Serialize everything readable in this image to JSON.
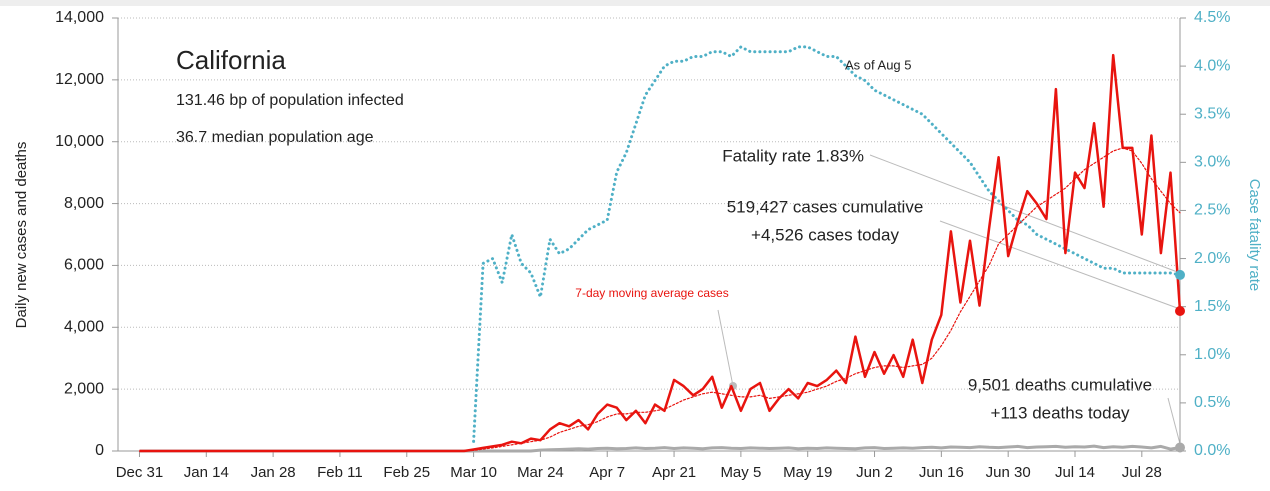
{
  "chart_data": {
    "type": "line",
    "annotations": {
      "title": "California",
      "line1": "131.46 bp of population infected",
      "line2": "36.7 median population age",
      "asof": "As of Aug 5",
      "fatality": "Fatality rate 1.83%",
      "cases_cum": "519,427 cases cumulative",
      "cases_today": "+4,526 cases today",
      "deaths_cum": "9,501 deaths cumulative",
      "deaths_today": "+113 deaths today"
    },
    "ylabel": "Daily new cases and deaths",
    "y2label": "Case fatality rate",
    "x": [
      0,
      66,
      68,
      70,
      72,
      74,
      76,
      78,
      80,
      82,
      84,
      86,
      88,
      90,
      92,
      94,
      96,
      98,
      100,
      102,
      104,
      106,
      108,
      110,
      112,
      114,
      116,
      118,
      120,
      122,
      124,
      126,
      128,
      130,
      132,
      134,
      136,
      138,
      140,
      142,
      144,
      146,
      148,
      150,
      152,
      154,
      156,
      158,
      160,
      162,
      164,
      166,
      168,
      170,
      172,
      174,
      176,
      178,
      180,
      182,
      184,
      186,
      188,
      190,
      192,
      194,
      196,
      198,
      200,
      202,
      204,
      206,
      208,
      210,
      212,
      214,
      216,
      218
    ],
    "xlim": [
      -4.5,
      218
    ],
    "xticks": [
      {
        "value": 0,
        "label": "Dec 31"
      },
      {
        "value": 14,
        "label": "Jan 14"
      },
      {
        "value": 28,
        "label": "Jan 28"
      },
      {
        "value": 42,
        "label": "Feb 11"
      },
      {
        "value": 56,
        "label": "Feb 25"
      },
      {
        "value": 70,
        "label": "Mar 10"
      },
      {
        "value": 84,
        "label": "Mar 24"
      },
      {
        "value": 98,
        "label": "Apr 7"
      },
      {
        "value": 112,
        "label": "Apr 21"
      },
      {
        "value": 126,
        "label": "May 5"
      },
      {
        "value": 140,
        "label": "May 19"
      },
      {
        "value": 154,
        "label": "Jun 2"
      },
      {
        "value": 168,
        "label": "Jun 16"
      },
      {
        "value": 182,
        "label": "Jun 30"
      },
      {
        "value": 196,
        "label": "Jul 14"
      },
      {
        "value": 210,
        "label": "Jul 28"
      }
    ],
    "ylim": [
      0,
      14000
    ],
    "yticks": [
      0,
      {
        "value": 2000,
        "label": "2,000"
      },
      {
        "value": 4000,
        "label": "4,000"
      },
      {
        "value": 6000,
        "label": "6,000"
      },
      {
        "value": 8000,
        "label": "8,000"
      },
      {
        "value": 10000,
        "label": "10,000"
      },
      {
        "value": 12000,
        "label": "12,000"
      },
      {
        "value": 14000,
        "label": "14,000"
      }
    ],
    "y2lim": [
      0,
      4.5
    ],
    "y2ticks": [
      {
        "value": 0,
        "label": "0.0%"
      },
      {
        "value": 0.5,
        "label": "0.5%"
      },
      {
        "value": 1,
        "label": "1.0%"
      },
      {
        "value": 1.5,
        "label": "1.5%"
      },
      {
        "value": 2,
        "label": "2.0%"
      },
      {
        "value": 2.5,
        "label": "2.5%"
      },
      {
        "value": 3,
        "label": "3.0%"
      },
      {
        "value": 3.5,
        "label": "3.5%"
      },
      {
        "value": 4,
        "label": "4.0%"
      },
      {
        "value": 4.5,
        "label": "4.5%"
      }
    ],
    "grid": true,
    "series": [
      {
        "color": "#e8140f",
        "style": "solid",
        "values": [
          0,
          0,
          0,
          50,
          100,
          150,
          200,
          300,
          250,
          400,
          350,
          700,
          900,
          800,
          1000,
          700,
          1200,
          1500,
          1400,
          1000,
          1300,
          900,
          1500,
          1300,
          2300,
          2100,
          1800,
          2000,
          2400,
          1400,
          2100,
          1300,
          2000,
          2200,
          1300,
          1700,
          2000,
          1700,
          2200,
          2100,
          2300,
          2600,
          2200,
          3700,
          2400,
          3200,
          2500,
          3100,
          2400,
          3600,
          2200,
          3600,
          4400,
          7100,
          4800,
          6800,
          4700,
          7200,
          9500,
          6300,
          7400,
          8400,
          8000,
          7500,
          11700,
          6400,
          9000,
          8500,
          10600,
          7900,
          12800,
          9800,
          9800,
          7000,
          10200,
          6400,
          9000,
          4526
        ]
      },
      {
        "name": "7-day moving average cases",
        "color": "#e8140f",
        "style": "dotted",
        "values": [
          0,
          0,
          0,
          20,
          60,
          100,
          150,
          200,
          250,
          300,
          350,
          450,
          600,
          700,
          800,
          850,
          950,
          1100,
          1200,
          1200,
          1250,
          1250,
          1300,
          1350,
          1500,
          1650,
          1750,
          1850,
          1900,
          1850,
          1800,
          1750,
          1750,
          1800,
          1700,
          1750,
          1800,
          1850,
          1900,
          2000,
          2100,
          2250,
          2350,
          2500,
          2600,
          2700,
          2750,
          2750,
          2700,
          2750,
          2800,
          3000,
          3400,
          3900,
          4500,
          5000,
          5500,
          6000,
          6700,
          7000,
          7300,
          7600,
          7900,
          8100,
          8300,
          8500,
          8800,
          9100,
          9300,
          9500,
          9700,
          9800,
          9700,
          9300,
          8800,
          8400,
          8000,
          7700
        ]
      },
      {
        "color": "#4fb0c6",
        "style": "dotted",
        "axis": "y2",
        "values": [
          null,
          null,
          null,
          0.1,
          1.95,
          2.0,
          1.75,
          2.25,
          1.95,
          1.85,
          1.6,
          2.2,
          2.05,
          2.1,
          2.2,
          2.3,
          2.35,
          2.4,
          2.9,
          3.1,
          3.4,
          3.7,
          3.85,
          4.0,
          4.05,
          4.05,
          4.1,
          4.1,
          4.15,
          4.15,
          4.1,
          4.2,
          4.15,
          4.15,
          4.15,
          4.15,
          4.15,
          4.2,
          4.2,
          4.15,
          4.1,
          4.1,
          4.0,
          3.9,
          3.85,
          3.75,
          3.7,
          3.65,
          3.6,
          3.55,
          3.5,
          3.4,
          3.3,
          3.2,
          3.1,
          3.0,
          2.85,
          2.7,
          2.6,
          2.5,
          2.4,
          2.35,
          2.25,
          2.2,
          2.15,
          2.1,
          2.05,
          2.0,
          1.95,
          1.9,
          1.9,
          1.85,
          1.85,
          1.85,
          1.85,
          1.85,
          1.85,
          1.83
        ]
      },
      {
        "color": "#aaaaaa",
        "style": "solid",
        "values": [
          0,
          0,
          0,
          0,
          0,
          0,
          0,
          0,
          0,
          0,
          30,
          40,
          50,
          60,
          70,
          60,
          80,
          90,
          70,
          80,
          100,
          80,
          90,
          110,
          80,
          100,
          90,
          70,
          100,
          110,
          90,
          80,
          100,
          90,
          80,
          90,
          100,
          70,
          90,
          80,
          100,
          90,
          80,
          70,
          100,
          110,
          80,
          90,
          100,
          90,
          110,
          120,
          100,
          130,
          120,
          110,
          140,
          120,
          110,
          130,
          150,
          110,
          130,
          140,
          150,
          120,
          140,
          130,
          160,
          110,
          140,
          120,
          150,
          130,
          100,
          150,
          60,
          113
        ]
      }
    ]
  }
}
